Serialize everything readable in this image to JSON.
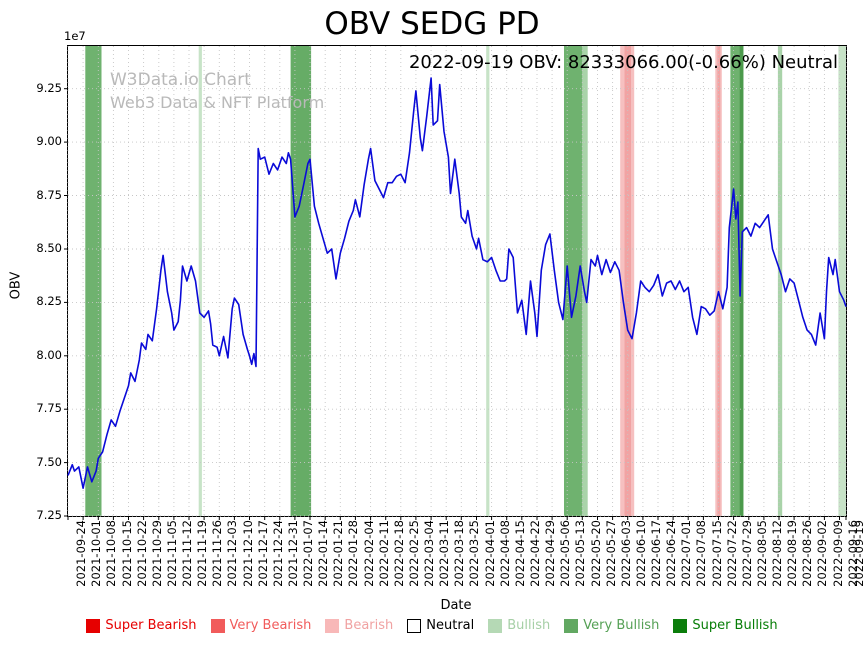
{
  "chart_data": {
    "type": "line",
    "title": "OBV SEDG PD",
    "annotation": "2022-09-19 OBV: 82333066.00(-0.66%) Neutral",
    "xlabel": "Date",
    "ylabel": "OBV",
    "y_offset_text": "1e7",
    "ylim": [
      7.25,
      9.45
    ],
    "x_span_days": 360,
    "y_ticks": [
      7.25,
      7.5,
      7.75,
      8.0,
      8.25,
      8.5,
      8.75,
      9.0,
      9.25
    ],
    "x_tick_labels": [
      "2021-09-24",
      "2021-10-01",
      "2021-10-08",
      "2021-10-15",
      "2021-10-22",
      "2021-10-29",
      "2021-11-05",
      "2021-11-12",
      "2021-11-19",
      "2021-11-26",
      "2021-12-03",
      "2021-12-10",
      "2021-12-17",
      "2021-12-24",
      "2021-12-31",
      "2022-01-07",
      "2022-01-14",
      "2022-01-21",
      "2022-01-28",
      "2022-02-04",
      "2022-02-11",
      "2022-02-18",
      "2022-02-25",
      "2022-03-04",
      "2022-03-11",
      "2022-03-18",
      "2022-03-25",
      "2022-04-01",
      "2022-04-08",
      "2022-04-15",
      "2022-04-22",
      "2022-04-29",
      "2022-05-06",
      "2022-05-13",
      "2022-05-20",
      "2022-05-27",
      "2022-06-03",
      "2022-06-10",
      "2022-06-17",
      "2022-06-24",
      "2022-07-01",
      "2022-07-08",
      "2022-07-15",
      "2022-07-22",
      "2022-07-29",
      "2022-08-05",
      "2022-08-12",
      "2022-08-19",
      "2022-08-26",
      "2022-09-02",
      "2022-09-09",
      "2022-09-16",
      "2022-09-19"
    ],
    "x_tick_days": [
      0,
      7,
      14,
      21,
      28,
      35,
      42,
      49,
      56,
      63,
      70,
      77,
      84,
      91,
      98,
      105,
      112,
      119,
      126,
      133,
      140,
      147,
      154,
      161,
      168,
      175,
      182,
      189,
      196,
      203,
      210,
      217,
      224,
      231,
      238,
      245,
      252,
      259,
      266,
      273,
      280,
      287,
      294,
      301,
      308,
      315,
      322,
      329,
      336,
      343,
      350,
      357,
      360
    ],
    "line_color": "#0a0ad8",
    "grid_color": "#c6c6c6",
    "last_value": "82333066.00",
    "last_change_pct": "-0.66%",
    "last_signal": "Neutral",
    "series": [
      {
        "name": "OBV",
        "points": [
          [
            0,
            7.44
          ],
          [
            2,
            7.49
          ],
          [
            3,
            7.46
          ],
          [
            5,
            7.48
          ],
          [
            7,
            7.38
          ],
          [
            9,
            7.48
          ],
          [
            11,
            7.41
          ],
          [
            13,
            7.46
          ],
          [
            14,
            7.52
          ],
          [
            16,
            7.55
          ],
          [
            18,
            7.63
          ],
          [
            20,
            7.7
          ],
          [
            22,
            7.67
          ],
          [
            24,
            7.74
          ],
          [
            26,
            7.8
          ],
          [
            28,
            7.86
          ],
          [
            29,
            7.92
          ],
          [
            31,
            7.88
          ],
          [
            33,
            7.98
          ],
          [
            34,
            8.06
          ],
          [
            36,
            8.03
          ],
          [
            37,
            8.1
          ],
          [
            39,
            8.07
          ],
          [
            41,
            8.22
          ],
          [
            43,
            8.4
          ],
          [
            44,
            8.47
          ],
          [
            46,
            8.3
          ],
          [
            48,
            8.2
          ],
          [
            49,
            8.12
          ],
          [
            51,
            8.16
          ],
          [
            52,
            8.26
          ],
          [
            53,
            8.42
          ],
          [
            55,
            8.35
          ],
          [
            57,
            8.42
          ],
          [
            59,
            8.35
          ],
          [
            61,
            8.2
          ],
          [
            63,
            8.18
          ],
          [
            65,
            8.21
          ],
          [
            66,
            8.15
          ],
          [
            67,
            8.05
          ],
          [
            69,
            8.04
          ],
          [
            70,
            8.0
          ],
          [
            72,
            8.09
          ],
          [
            74,
            7.99
          ],
          [
            76,
            8.22
          ],
          [
            77,
            8.27
          ],
          [
            79,
            8.24
          ],
          [
            81,
            8.1
          ],
          [
            83,
            8.03
          ],
          [
            84,
            8.0
          ],
          [
            85,
            7.96
          ],
          [
            86,
            8.01
          ],
          [
            87,
            7.95
          ],
          [
            88,
            8.97
          ],
          [
            89,
            8.92
          ],
          [
            91,
            8.93
          ],
          [
            93,
            8.85
          ],
          [
            95,
            8.9
          ],
          [
            97,
            8.87
          ],
          [
            99,
            8.93
          ],
          [
            101,
            8.9
          ],
          [
            102,
            8.95
          ],
          [
            103,
            8.92
          ],
          [
            105,
            8.65
          ],
          [
            107,
            8.7
          ],
          [
            109,
            8.8
          ],
          [
            111,
            8.9
          ],
          [
            112,
            8.92
          ],
          [
            114,
            8.7
          ],
          [
            116,
            8.62
          ],
          [
            118,
            8.55
          ],
          [
            120,
            8.48
          ],
          [
            122,
            8.5
          ],
          [
            124,
            8.36
          ],
          [
            126,
            8.48
          ],
          [
            128,
            8.55
          ],
          [
            130,
            8.63
          ],
          [
            132,
            8.68
          ],
          [
            133,
            8.73
          ],
          [
            135,
            8.65
          ],
          [
            137,
            8.8
          ],
          [
            139,
            8.92
          ],
          [
            140,
            8.97
          ],
          [
            142,
            8.82
          ],
          [
            144,
            8.78
          ],
          [
            146,
            8.74
          ],
          [
            148,
            8.81
          ],
          [
            150,
            8.81
          ],
          [
            152,
            8.84
          ],
          [
            154,
            8.85
          ],
          [
            156,
            8.81
          ],
          [
            158,
            8.95
          ],
          [
            160,
            9.15
          ],
          [
            161,
            9.24
          ],
          [
            163,
            9.02
          ],
          [
            164,
            8.96
          ],
          [
            166,
            9.12
          ],
          [
            168,
            9.3
          ],
          [
            169,
            9.08
          ],
          [
            171,
            9.1
          ],
          [
            172,
            9.27
          ],
          [
            174,
            9.05
          ],
          [
            176,
            8.93
          ],
          [
            177,
            8.76
          ],
          [
            179,
            8.92
          ],
          [
            181,
            8.76
          ],
          [
            182,
            8.65
          ],
          [
            184,
            8.62
          ],
          [
            185,
            8.68
          ],
          [
            187,
            8.56
          ],
          [
            189,
            8.5
          ],
          [
            190,
            8.55
          ],
          [
            192,
            8.45
          ],
          [
            194,
            8.44
          ],
          [
            196,
            8.46
          ],
          [
            198,
            8.4
          ],
          [
            200,
            8.35
          ],
          [
            202,
            8.35
          ],
          [
            203,
            8.36
          ],
          [
            204,
            8.5
          ],
          [
            206,
            8.46
          ],
          [
            208,
            8.2
          ],
          [
            210,
            8.26
          ],
          [
            212,
            8.1
          ],
          [
            214,
            8.35
          ],
          [
            216,
            8.2
          ],
          [
            217,
            8.09
          ],
          [
            219,
            8.4
          ],
          [
            221,
            8.52
          ],
          [
            223,
            8.57
          ],
          [
            225,
            8.4
          ],
          [
            227,
            8.25
          ],
          [
            229,
            8.17
          ],
          [
            231,
            8.42
          ],
          [
            233,
            8.18
          ],
          [
            235,
            8.28
          ],
          [
            237,
            8.42
          ],
          [
            239,
            8.3
          ],
          [
            240,
            8.25
          ],
          [
            242,
            8.45
          ],
          [
            244,
            8.42
          ],
          [
            245,
            8.47
          ],
          [
            247,
            8.38
          ],
          [
            249,
            8.45
          ],
          [
            251,
            8.39
          ],
          [
            253,
            8.44
          ],
          [
            255,
            8.4
          ],
          [
            257,
            8.25
          ],
          [
            259,
            8.12
          ],
          [
            261,
            8.08
          ],
          [
            263,
            8.2
          ],
          [
            265,
            8.35
          ],
          [
            267,
            8.32
          ],
          [
            269,
            8.3
          ],
          [
            271,
            8.33
          ],
          [
            273,
            8.38
          ],
          [
            275,
            8.28
          ],
          [
            277,
            8.34
          ],
          [
            279,
            8.35
          ],
          [
            281,
            8.31
          ],
          [
            283,
            8.35
          ],
          [
            285,
            8.3
          ],
          [
            287,
            8.32
          ],
          [
            289,
            8.18
          ],
          [
            291,
            8.1
          ],
          [
            293,
            8.23
          ],
          [
            295,
            8.22
          ],
          [
            297,
            8.19
          ],
          [
            299,
            8.21
          ],
          [
            301,
            8.3
          ],
          [
            303,
            8.22
          ],
          [
            305,
            8.32
          ],
          [
            306,
            8.6
          ],
          [
            308,
            8.78
          ],
          [
            309,
            8.64
          ],
          [
            310,
            8.72
          ],
          [
            311,
            8.28
          ],
          [
            312,
            8.58
          ],
          [
            314,
            8.6
          ],
          [
            316,
            8.56
          ],
          [
            318,
            8.62
          ],
          [
            320,
            8.6
          ],
          [
            322,
            8.63
          ],
          [
            324,
            8.66
          ],
          [
            326,
            8.5
          ],
          [
            328,
            8.44
          ],
          [
            330,
            8.38
          ],
          [
            332,
            8.3
          ],
          [
            334,
            8.36
          ],
          [
            336,
            8.34
          ],
          [
            338,
            8.26
          ],
          [
            340,
            8.18
          ],
          [
            342,
            8.12
          ],
          [
            344,
            8.1
          ],
          [
            346,
            8.05
          ],
          [
            348,
            8.2
          ],
          [
            350,
            8.08
          ],
          [
            351,
            8.3
          ],
          [
            352,
            8.46
          ],
          [
            354,
            8.38
          ],
          [
            355,
            8.45
          ],
          [
            357,
            8.3
          ],
          [
            359,
            8.26
          ],
          [
            360,
            8.23
          ]
        ]
      }
    ],
    "bands": [
      {
        "start": 8,
        "end": 15.5,
        "color": "#6fb26f",
        "label": "Very Bullish"
      },
      {
        "start": 60.5,
        "end": 62,
        "color": "#c7e3c7",
        "label": "Bullish"
      },
      {
        "start": 103,
        "end": 112.5,
        "color": "#66ac66",
        "label": "Very Bullish"
      },
      {
        "start": 193.5,
        "end": 195,
        "color": "#c7e3c7",
        "label": "Bullish"
      },
      {
        "start": 229.5,
        "end": 238,
        "color": "#6fb26f",
        "label": "Very Bullish"
      },
      {
        "start": 238,
        "end": 240.5,
        "color": "#a9d3a9",
        "label": "Bullish"
      },
      {
        "start": 255.5,
        "end": 262,
        "color": "#f6c0c0",
        "label": "Bearish"
      },
      {
        "start": 257.5,
        "end": 260.5,
        "color": "#f1a3a3",
        "label": "Bearish"
      },
      {
        "start": 299.5,
        "end": 302.5,
        "color": "#f6c0c0",
        "label": "Bearish"
      },
      {
        "start": 300.5,
        "end": 301.8,
        "color": "#f1a3a3",
        "label": "Bearish"
      },
      {
        "start": 306.5,
        "end": 312.5,
        "color": "#6fb26f",
        "label": "Very Bullish"
      },
      {
        "start": 310.8,
        "end": 312.5,
        "color": "#4c9a4c",
        "label": "Very Bullish"
      },
      {
        "start": 328.5,
        "end": 330.5,
        "color": "#a9d3a9",
        "label": "Bullish"
      },
      {
        "start": 356.5,
        "end": 360,
        "color": "#c7e3c7",
        "label": "Bullish"
      }
    ]
  },
  "watermark": {
    "line1": "W3Data.io Chart",
    "line2": "Web3 Data & NFT Platform"
  },
  "legend": {
    "items": [
      {
        "label": "Super Bearish",
        "swatch": "#e60000",
        "text_color": "#e60000",
        "border": "#e60000"
      },
      {
        "label": "Very Bearish",
        "swatch": "#f15b5b",
        "text_color": "#f15b5b",
        "border": "#f15b5b"
      },
      {
        "label": "Bearish",
        "swatch": "#f8b8b8",
        "text_color": "#f0a2a2",
        "border": "#f8b8b8"
      },
      {
        "label": "Neutral",
        "swatch": "#ffffff",
        "text_color": "#000000",
        "border": "#000000"
      },
      {
        "label": "Bullish",
        "swatch": "#b5d9b5",
        "text_color": "#a6cfa6",
        "border": "#b5d9b5"
      },
      {
        "label": "Very Bullish",
        "swatch": "#62a862",
        "text_color": "#55a055",
        "border": "#62a862"
      },
      {
        "label": "Super Bullish",
        "swatch": "#0b7d0b",
        "text_color": "#067d06",
        "border": "#0b7d0b"
      }
    ]
  }
}
